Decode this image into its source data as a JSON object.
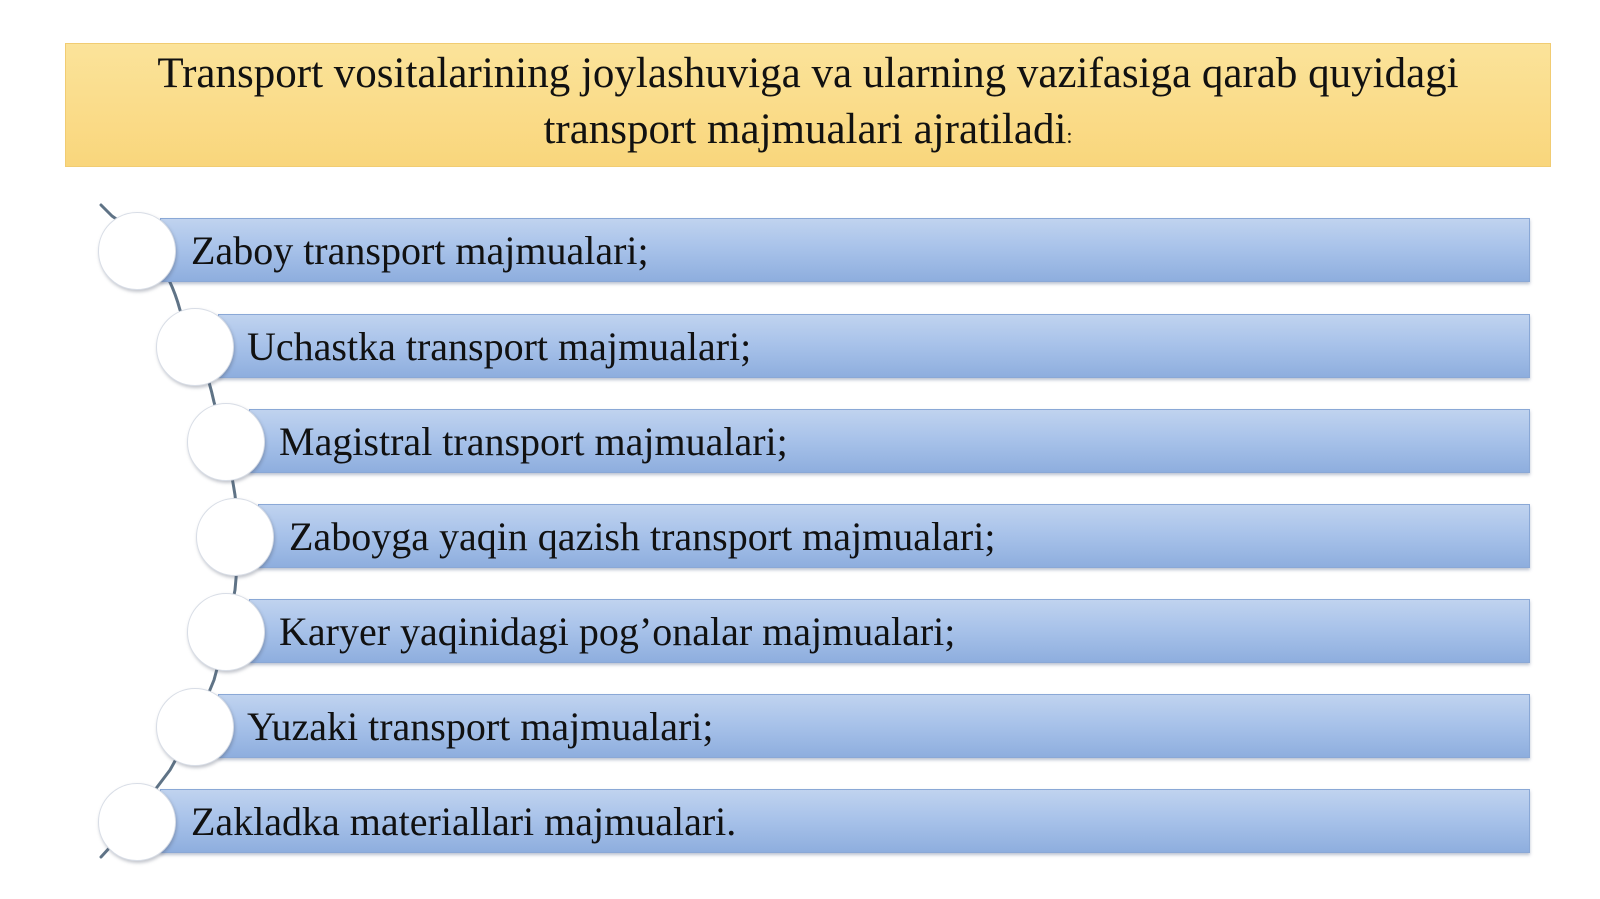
{
  "title": {
    "text": "Transport vositalarining joylashuviga va ularning vazifasiga qarab quyidagi transport majmualari ajratiladi",
    "colon": ":"
  },
  "items": [
    {
      "label": "Zaboy transport majmualari;"
    },
    {
      "label": "Uchastka transport majmualari;"
    },
    {
      "label": "Magistral transport majmualari;"
    },
    {
      "label": "Zaboyga yaqin qazish transport majmualari;"
    },
    {
      "label": "Karyer yaqinidagi pog’onalar majmualari;"
    },
    {
      "label": "Yuzaki transport majmualari;"
    },
    {
      "label": "Zakladka materiallari majmualari."
    }
  ],
  "colors": {
    "title_background": "#f9d67c",
    "bar_fill": "#a9c3ea",
    "connector": "#5f7386"
  }
}
